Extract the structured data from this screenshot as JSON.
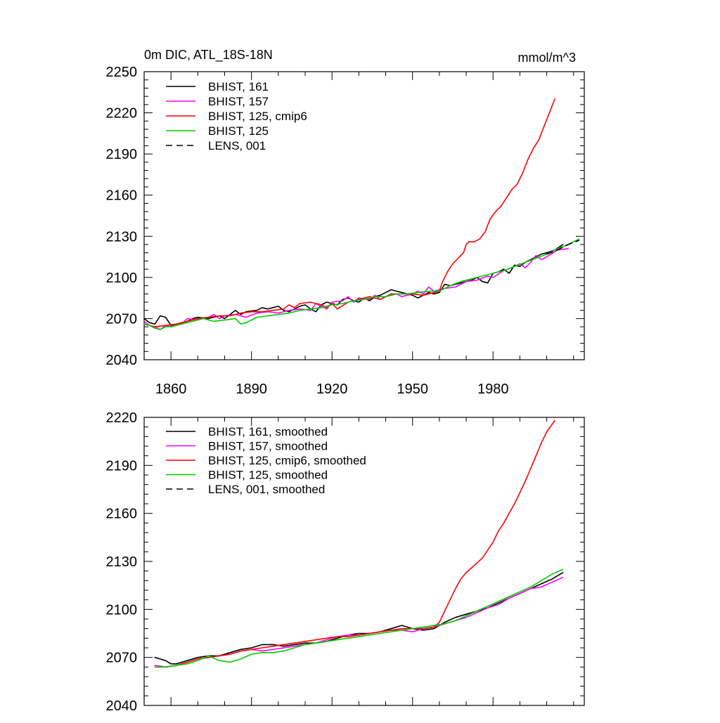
{
  "chart_data": [
    {
      "type": "line",
      "title": "0m DIC, ATL_18S-18N",
      "units": "mmol/m^3",
      "xlim": [
        1850,
        2014
      ],
      "ylim": [
        2040,
        2250
      ],
      "xticks": [
        1860,
        1890,
        1920,
        1950,
        1980
      ],
      "xtick_labels": [
        "1860",
        "1890",
        "1920",
        "1950",
        "1980"
      ],
      "yticks": [
        2040,
        2070,
        2100,
        2130,
        2160,
        2190,
        2220,
        2250
      ],
      "ytick_labels": [
        "2040",
        "2070",
        "2100",
        "2130",
        "2160",
        "2190",
        "2220",
        "2250"
      ],
      "grid": false,
      "legend_position": "top-left",
      "series": [
        {
          "name": "BHIST, 161",
          "color": "#000000",
          "dash": "solid",
          "x": [
            1850,
            1852,
            1854,
            1856,
            1858,
            1860,
            1862,
            1864,
            1866,
            1868,
            1870,
            1874,
            1878,
            1880,
            1884,
            1886,
            1888,
            1892,
            1894,
            1896,
            1898,
            1900,
            1902,
            1904,
            1906,
            1908,
            1910,
            1912,
            1914,
            1916,
            1918,
            1920,
            1922,
            1924,
            1926,
            1928,
            1930,
            1932,
            1934,
            1936,
            1938,
            1940,
            1942,
            1944,
            1946,
            1948,
            1950,
            1952,
            1954,
            1956,
            1958,
            1960,
            1962,
            1964,
            1966,
            1968,
            1970,
            1972,
            1974,
            1976,
            1978,
            1980,
            1982,
            1984,
            1986,
            1988,
            1990,
            1992,
            1994,
            1996,
            1998,
            2000,
            2003,
            2006
          ],
          "y": [
            2070,
            2067,
            2066,
            2072,
            2071,
            2065,
            2066,
            2067,
            2068,
            2070,
            2071,
            2070,
            2072,
            2070,
            2076,
            2073,
            2075,
            2076,
            2078,
            2077,
            2078,
            2079,
            2076,
            2075,
            2077,
            2079,
            2080,
            2077,
            2075,
            2080,
            2082,
            2081,
            2080,
            2084,
            2085,
            2083,
            2082,
            2085,
            2083,
            2086,
            2087,
            2089,
            2091,
            2090,
            2089,
            2088,
            2087,
            2085,
            2087,
            2089,
            2088,
            2089,
            2095,
            2094,
            2095,
            2096,
            2097,
            2098,
            2100,
            2097,
            2096,
            2103,
            2104,
            2106,
            2103,
            2109,
            2108,
            2111,
            2113,
            2115,
            2117,
            2118,
            2120,
            2124
          ]
        },
        {
          "name": "BHIST, 157",
          "color": "#ff00ff",
          "dash": "solid",
          "x": [
            1850,
            1852,
            1854,
            1856,
            1858,
            1860,
            1864,
            1866,
            1870,
            1874,
            1876,
            1878,
            1880,
            1884,
            1888,
            1892,
            1896,
            1900,
            1904,
            1908,
            1912,
            1914,
            1916,
            1918,
            1920,
            1924,
            1926,
            1928,
            1930,
            1934,
            1936,
            1938,
            1940,
            1944,
            1946,
            1948,
            1950,
            1952,
            1954,
            1956,
            1958,
            1960,
            1962,
            1966,
            1970,
            1974,
            1978,
            1980,
            1984,
            1988,
            1990,
            1992,
            1994,
            1996,
            1998,
            2000,
            2004,
            2008
          ],
          "y": [
            2068,
            2065,
            2064,
            2062,
            2065,
            2064,
            2066,
            2070,
            2069,
            2071,
            2073,
            2070,
            2072,
            2073,
            2071,
            2074,
            2075,
            2074,
            2076,
            2077,
            2076,
            2081,
            2079,
            2077,
            2082,
            2083,
            2086,
            2082,
            2085,
            2084,
            2087,
            2084,
            2086,
            2088,
            2086,
            2087,
            2088,
            2090,
            2088,
            2093,
            2090,
            2091,
            2092,
            2093,
            2097,
            2098,
            2101,
            2100,
            2105,
            2108,
            2110,
            2107,
            2111,
            2116,
            2113,
            2115,
            2120,
            2121
          ]
        },
        {
          "name": "BHIST, 125, cmip6",
          "color": "#ff0000",
          "dash": "solid",
          "x": [
            1850,
            1854,
            1858,
            1862,
            1866,
            1870,
            1874,
            1878,
            1882,
            1886,
            1890,
            1894,
            1898,
            1902,
            1904,
            1906,
            1908,
            1912,
            1916,
            1918,
            1920,
            1922,
            1926,
            1930,
            1934,
            1938,
            1942,
            1946,
            1950,
            1954,
            1958,
            1960,
            1961,
            1963,
            1965,
            1967,
            1969,
            1970,
            1971,
            1973,
            1975,
            1977,
            1979,
            1981,
            1983,
            1985,
            1987,
            1989,
            1991,
            1993,
            1995,
            1997,
            1999,
            2001,
            2003
          ],
          "y": [
            2066,
            2064,
            2065,
            2066,
            2068,
            2070,
            2071,
            2072,
            2072,
            2074,
            2075,
            2075,
            2076,
            2077,
            2080,
            2078,
            2081,
            2082,
            2080,
            2078,
            2081,
            2077,
            2082,
            2084,
            2086,
            2084,
            2088,
            2088,
            2088,
            2087,
            2089,
            2090,
            2096,
            2104,
            2110,
            2114,
            2118,
            2124,
            2126,
            2126,
            2128,
            2133,
            2143,
            2148,
            2152,
            2158,
            2164,
            2168,
            2176,
            2186,
            2194,
            2200,
            2210,
            2220,
            2230
          ]
        },
        {
          "name": "BHIST, 125",
          "color": "#00cc00",
          "dash": "solid",
          "x": [
            1850,
            1852,
            1854,
            1856,
            1858,
            1860,
            1864,
            1868,
            1872,
            1876,
            1880,
            1884,
            1886,
            1888,
            1892,
            1896,
            1900,
            1904,
            1908,
            1912,
            1916,
            1920,
            1924,
            1928,
            1932,
            1936,
            1940,
            1944,
            1948,
            1952,
            1956,
            1960,
            1964,
            1968,
            1972,
            1976,
            1980,
            1984,
            1988,
            1992,
            1996,
            2000,
            2004,
            2008,
            2012
          ],
          "y": [
            2066,
            2065,
            2063,
            2062,
            2064,
            2064,
            2066,
            2068,
            2070,
            2068,
            2069,
            2070,
            2066,
            2067,
            2071,
            2072,
            2073,
            2074,
            2076,
            2077,
            2078,
            2080,
            2081,
            2083,
            2084,
            2086,
            2086,
            2088,
            2088,
            2089,
            2090,
            2090,
            2094,
            2097,
            2099,
            2101,
            2103,
            2105,
            2108,
            2111,
            2114,
            2117,
            2121,
            2124,
            2128
          ]
        },
        {
          "name": "LENS, 001",
          "color": "#000000",
          "dash": "dashed",
          "x": [
            2000,
            2004,
            2008,
            2012
          ],
          "y": [
            2117,
            2120,
            2124,
            2127
          ]
        }
      ]
    },
    {
      "type": "line",
      "title": "",
      "xlim": [
        1850,
        2014
      ],
      "ylim": [
        2040,
        2220
      ],
      "xticks": [
        1860,
        1890,
        1920,
        1950,
        1980
      ],
      "yticks": [
        2040,
        2070,
        2100,
        2130,
        2160,
        2190,
        2220
      ],
      "ytick_labels": [
        "2040",
        "2070",
        "2100",
        "2130",
        "2160",
        "2190",
        "2220"
      ],
      "grid": false,
      "legend_position": "top-left",
      "series": [
        {
          "name": "BHIST, 161, smoothed",
          "color": "#000000",
          "dash": "solid",
          "x": [
            1854,
            1856,
            1858,
            1860,
            1862,
            1866,
            1870,
            1874,
            1878,
            1882,
            1886,
            1890,
            1894,
            1898,
            1902,
            1906,
            1910,
            1914,
            1918,
            1922,
            1926,
            1930,
            1934,
            1938,
            1942,
            1946,
            1948,
            1950,
            1954,
            1958,
            1962,
            1966,
            1970,
            1974,
            1978,
            1982,
            1986,
            1990,
            1994,
            1998,
            2002,
            2006
          ],
          "y": [
            2070,
            2069,
            2068,
            2066,
            2066,
            2068,
            2070,
            2071,
            2071,
            2073,
            2075,
            2076,
            2078,
            2078,
            2077,
            2078,
            2079,
            2079,
            2080,
            2082,
            2084,
            2085,
            2085,
            2086,
            2088,
            2090,
            2089,
            2088,
            2087,
            2088,
            2092,
            2095,
            2097,
            2099,
            2101,
            2104,
            2107,
            2110,
            2113,
            2116,
            2119,
            2123
          ]
        },
        {
          "name": "BHIST, 157, smoothed",
          "color": "#ff00ff",
          "dash": "solid",
          "x": [
            1854,
            1858,
            1862,
            1866,
            1870,
            1874,
            1878,
            1882,
            1886,
            1890,
            1894,
            1898,
            1902,
            1906,
            1910,
            1914,
            1918,
            1922,
            1926,
            1930,
            1934,
            1938,
            1942,
            1946,
            1950,
            1954,
            1958,
            1962,
            1966,
            1970,
            1974,
            1978,
            1982,
            1986,
            1990,
            1994,
            1998,
            2002,
            2006
          ],
          "y": [
            2065,
            2064,
            2065,
            2067,
            2069,
            2070,
            2071,
            2072,
            2074,
            2075,
            2074,
            2075,
            2076,
            2077,
            2078,
            2079,
            2081,
            2083,
            2084,
            2084,
            2085,
            2086,
            2087,
            2087,
            2086,
            2088,
            2089,
            2091,
            2093,
            2095,
            2098,
            2101,
            2103,
            2107,
            2110,
            2113,
            2114,
            2117,
            2120
          ]
        },
        {
          "name": "BHIST, 125, cmip6, smoothed",
          "color": "#ff0000",
          "dash": "solid",
          "x": [
            1854,
            1858,
            1862,
            1866,
            1870,
            1874,
            1878,
            1882,
            1886,
            1890,
            1894,
            1898,
            1902,
            1906,
            1910,
            1914,
            1918,
            1922,
            1926,
            1930,
            1934,
            1938,
            1942,
            1946,
            1950,
            1954,
            1958,
            1960,
            1962,
            1964,
            1966,
            1968,
            1970,
            1972,
            1974,
            1976,
            1978,
            1980,
            1982,
            1984,
            1986,
            1988,
            1990,
            1992,
            1994,
            1996,
            1998,
            2000,
            2003
          ],
          "y": [
            2064,
            2064,
            2065,
            2067,
            2069,
            2070,
            2071,
            2072,
            2074,
            2075,
            2076,
            2077,
            2078,
            2079,
            2080,
            2081,
            2082,
            2083,
            2083,
            2084,
            2085,
            2086,
            2087,
            2088,
            2088,
            2088,
            2089,
            2092,
            2099,
            2106,
            2113,
            2119,
            2123,
            2126,
            2129,
            2132,
            2137,
            2142,
            2149,
            2154,
            2160,
            2166,
            2173,
            2180,
            2188,
            2196,
            2204,
            2211,
            2218
          ]
        },
        {
          "name": "BHIST, 125, smoothed",
          "color": "#00cc00",
          "dash": "solid",
          "x": [
            1854,
            1858,
            1862,
            1866,
            1870,
            1874,
            1878,
            1882,
            1886,
            1890,
            1894,
            1898,
            1902,
            1906,
            1910,
            1914,
            1918,
            1922,
            1926,
            1930,
            1934,
            1938,
            1942,
            1946,
            1950,
            1954,
            1958,
            1962,
            1966,
            1970,
            1974,
            1978,
            1982,
            1986,
            1990,
            1994,
            1998,
            2002,
            2006
          ],
          "y": [
            2064,
            2064,
            2065,
            2066,
            2068,
            2071,
            2068,
            2067,
            2069,
            2072,
            2073,
            2073,
            2074,
            2076,
            2078,
            2079,
            2080,
            2081,
            2082,
            2083,
            2084,
            2085,
            2086,
            2087,
            2088,
            2089,
            2090,
            2091,
            2093,
            2096,
            2099,
            2102,
            2105,
            2108,
            2111,
            2114,
            2118,
            2122,
            2125
          ]
        },
        {
          "name": "LENS, 001, smoothed",
          "color": "#000000",
          "dash": "dashed",
          "x": [],
          "y": []
        }
      ]
    }
  ]
}
